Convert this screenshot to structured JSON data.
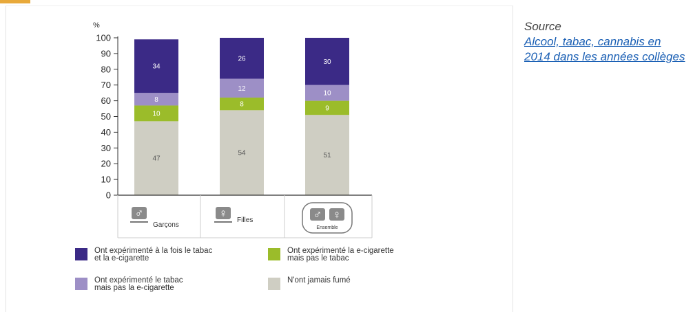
{
  "source": {
    "label": "Source",
    "link_text": "Alcool, tabac, cannabis en 2014 dans les années collèges"
  },
  "chart_data": {
    "type": "bar",
    "stacked": true,
    "unit_label": "%",
    "ylim": [
      0,
      100
    ],
    "yticks": [
      "0",
      "10",
      "20",
      "30",
      "40",
      "50",
      "60",
      "70",
      "80",
      "90",
      "100"
    ],
    "categories": [
      "Garçons",
      "Filles",
      "Ensemble"
    ],
    "series": [
      {
        "name": "N'ont jamais fumé",
        "color": "#cfcec3",
        "values": [
          47,
          54,
          51
        ],
        "labels": [
          "47",
          "54",
          "51"
        ],
        "label_color": "#555555"
      },
      {
        "name": "Ont expérimenté la e-cigarette mais pas le tabac",
        "color": "#9bbc2a",
        "values": [
          10,
          8,
          9
        ],
        "labels": [
          "10",
          "8",
          "9"
        ],
        "label_color": "#ffffff"
      },
      {
        "name": "Ont expérimenté le tabac mais pas la e-cigarette",
        "color": "#9d8fc6",
        "values": [
          8,
          12,
          10
        ],
        "labels": [
          "8",
          "12",
          "10"
        ],
        "label_color": "#ffffff"
      },
      {
        "name": "Ont expérimenté à la fois le tabac et la e-cigarette",
        "color": "#3b2a86",
        "values": [
          34,
          26,
          30
        ],
        "labels": [
          "34",
          "26",
          "30"
        ],
        "label_color": "#ffffff"
      }
    ],
    "category_icons": [
      "male-symbol-icon",
      "female-symbol-icon",
      "male-female-symbols-icon"
    ],
    "ensemble_sublabel": "Ensemble",
    "legend": [
      {
        "label_lines": [
          "Ont expérimenté à la fois le tabac",
          "et la e-cigarette"
        ],
        "color": "#3b2a86"
      },
      {
        "label_lines": [
          "Ont expérimenté la e-cigarette",
          "mais pas le tabac"
        ],
        "color": "#9bbc2a"
      },
      {
        "label_lines": [
          "Ont expérimenté le tabac",
          "mais pas la e-cigarette"
        ],
        "color": "#9d8fc6"
      },
      {
        "label_lines": [
          "N'ont jamais fumé"
        ],
        "color": "#cfcec3"
      }
    ]
  }
}
